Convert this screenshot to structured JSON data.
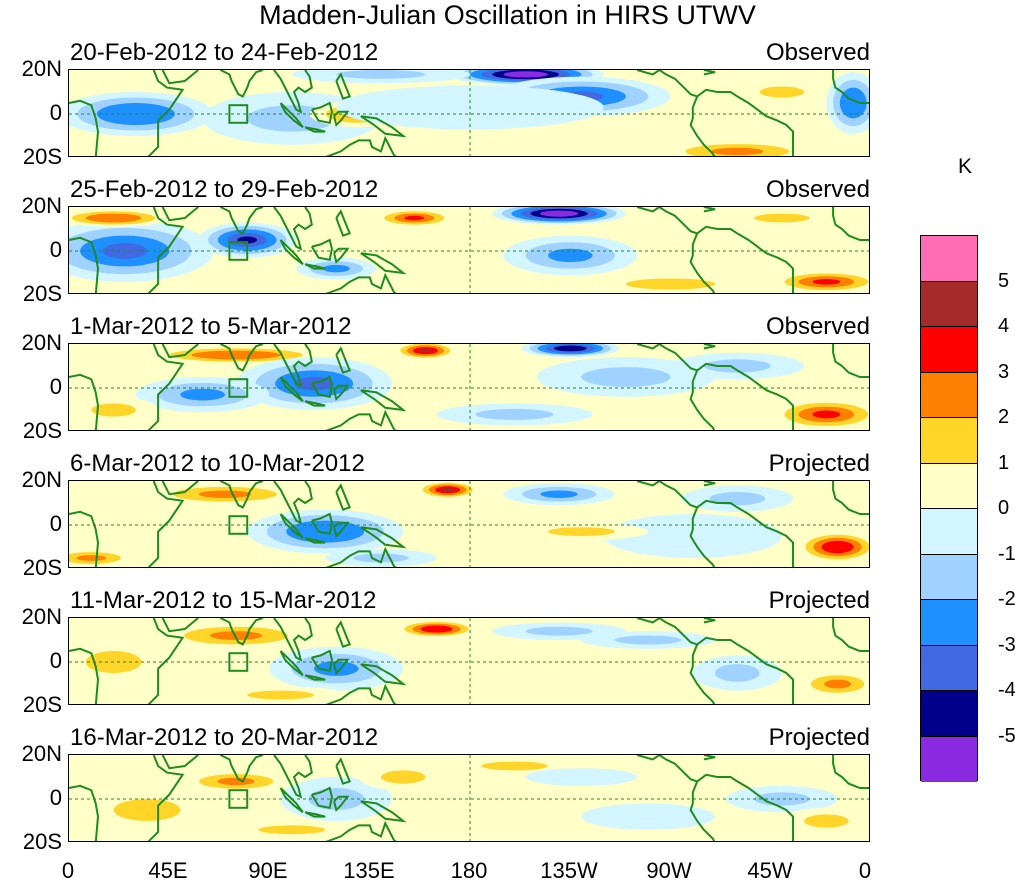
{
  "title": "Madden-Julian Oscillation in HIRS UTWV",
  "panels": [
    {
      "dates": "20-Feb-2012 to 24-Feb-2012",
      "kind": "Observed"
    },
    {
      "dates": "25-Feb-2012 to 29-Feb-2012",
      "kind": "Observed"
    },
    {
      "dates": "1-Mar-2012 to 5-Mar-2012",
      "kind": "Observed"
    },
    {
      "dates": "6-Mar-2012 to 10-Mar-2012",
      "kind": "Projected"
    },
    {
      "dates": "11-Mar-2012 to 15-Mar-2012",
      "kind": "Projected"
    },
    {
      "dates": "16-Mar-2012 to 20-Mar-2012",
      "kind": "Projected"
    }
  ],
  "lat_labels": {
    "north": "20N",
    "equator": "0",
    "south": "20S"
  },
  "lon_labels": [
    "0",
    "45E",
    "90E",
    "135E",
    "180",
    "135W",
    "90W",
    "45W",
    "0"
  ],
  "colorbar": {
    "unit": "K",
    "tick_labels": [
      "5",
      "4",
      "3",
      "2",
      "1",
      "0",
      "-1",
      "-2",
      "-3",
      "-4",
      "-5"
    ],
    "colors": [
      "#ff6eb4",
      "#a52a2a",
      "#ff0000",
      "#ff7f00",
      "#ffd52a",
      "#ffffc8",
      "#d2f5ff",
      "#a0d2ff",
      "#1e90ff",
      "#4169e1",
      "#00008b",
      "#8a2be2"
    ]
  },
  "map_colors": {
    "land_outline": "#1e8c1e",
    "equator_line": "#1e8c1e"
  }
}
